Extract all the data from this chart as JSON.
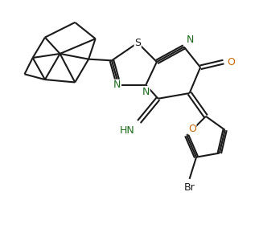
{
  "bg_color": "#ffffff",
  "line_color": "#1a1a1a",
  "N_color": "#1a6b1a",
  "O_color": "#cc6600",
  "S_color": "#1a1a1a",
  "Br_color": "#1a1a1a",
  "lw": 1.5,
  "figsize": [
    3.22,
    3.1
  ],
  "dpi": 100,
  "xlim": [
    0,
    9.5
  ],
  "ylim": [
    0,
    9.1
  ]
}
